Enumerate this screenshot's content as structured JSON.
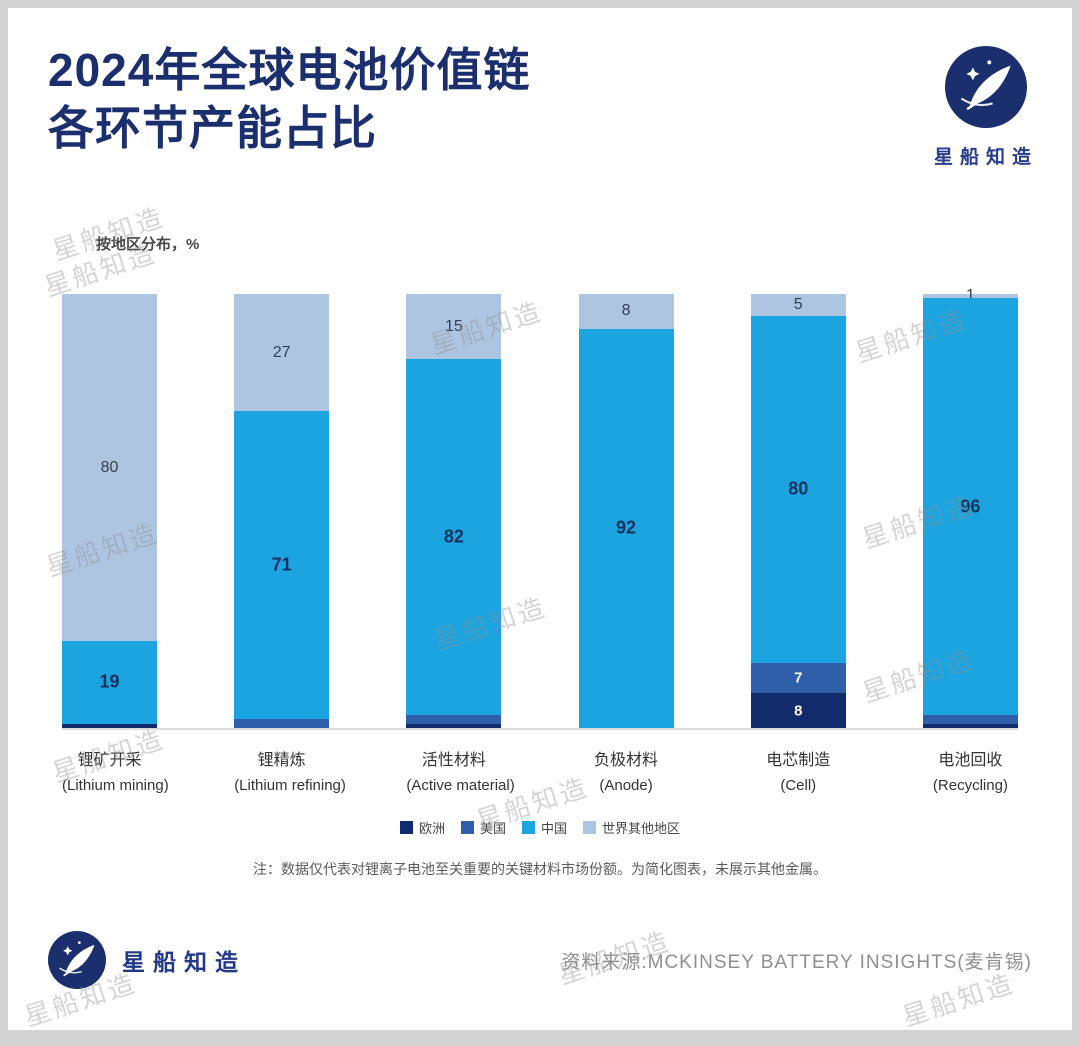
{
  "watermark": "星船知造",
  "header": {
    "title_line1": "2024年全球电池价值链",
    "title_line2": "各环节产能占比",
    "logo_text": "星船知造"
  },
  "chart_data": {
    "type": "bar",
    "variant": "stacked-vertical-100",
    "subtitle": "按地区分布，%",
    "unit": "%",
    "ylim": [
      0,
      100
    ],
    "grid": false,
    "legend_position": "bottom",
    "legend": [
      {
        "label": "欧洲",
        "color": "#122c6b"
      },
      {
        "label": "美国",
        "color": "#2e5fa8"
      },
      {
        "label": "中国",
        "color": "#1ba4e0"
      },
      {
        "label": "世界其他地区",
        "color": "#aec5e2"
      }
    ],
    "bars": [
      {
        "label_zh": "锂矿开采",
        "label_en": "(Lithium mining)",
        "segments": [
          {
            "region": "欧洲",
            "value": 1,
            "label": ""
          },
          {
            "region": "中国",
            "value": 19,
            "label": "19"
          },
          {
            "region": "世界其他地区",
            "value": 80,
            "label": "80"
          }
        ]
      },
      {
        "label_zh": "锂精炼",
        "label_en": "(Lithium refining)",
        "segments": [
          {
            "region": "美国",
            "value": 2,
            "label": ""
          },
          {
            "region": "中国",
            "value": 71,
            "label": "71"
          },
          {
            "region": "世界其他地区",
            "value": 27,
            "label": "27"
          }
        ]
      },
      {
        "label_zh": "活性材料",
        "label_en": "(Active material)",
        "segments": [
          {
            "region": "欧洲",
            "value": 1,
            "label": ""
          },
          {
            "region": "美国",
            "value": 2,
            "label": ""
          },
          {
            "region": "中国",
            "value": 82,
            "label": "82"
          },
          {
            "region": "世界其他地区",
            "value": 15,
            "label": "15"
          }
        ]
      },
      {
        "label_zh": "负极材料",
        "label_en": "(Anode)",
        "segments": [
          {
            "region": "中国",
            "value": 92,
            "label": "92"
          },
          {
            "region": "世界其他地区",
            "value": 8,
            "label": "8"
          }
        ]
      },
      {
        "label_zh": "电芯制造",
        "label_en": "(Cell)",
        "segments": [
          {
            "region": "欧洲",
            "value": 8,
            "label": "8"
          },
          {
            "region": "美国",
            "value": 7,
            "label": "7"
          },
          {
            "region": "中国",
            "value": 80,
            "label": "80"
          },
          {
            "region": "世界其他地区",
            "value": 5,
            "label": "5"
          }
        ]
      },
      {
        "label_zh": "电池回收",
        "label_en": "(Recycling)",
        "segments": [
          {
            "region": "欧洲",
            "value": 1,
            "label": ""
          },
          {
            "region": "美国",
            "value": 2,
            "label": ""
          },
          {
            "region": "中国",
            "value": 96,
            "label": "96"
          },
          {
            "region": "世界其他地区",
            "value": 1,
            "label": "1"
          }
        ]
      }
    ],
    "note": "注：数据仅代表对锂离子电池至关重要的关键材料市场份额。为简化图表，未展示其他金属。"
  },
  "footer": {
    "logo_text": "星船知造",
    "source": "资料来源:MCKINSEY BATTERY INSIGHTS(麦肯锡)"
  }
}
